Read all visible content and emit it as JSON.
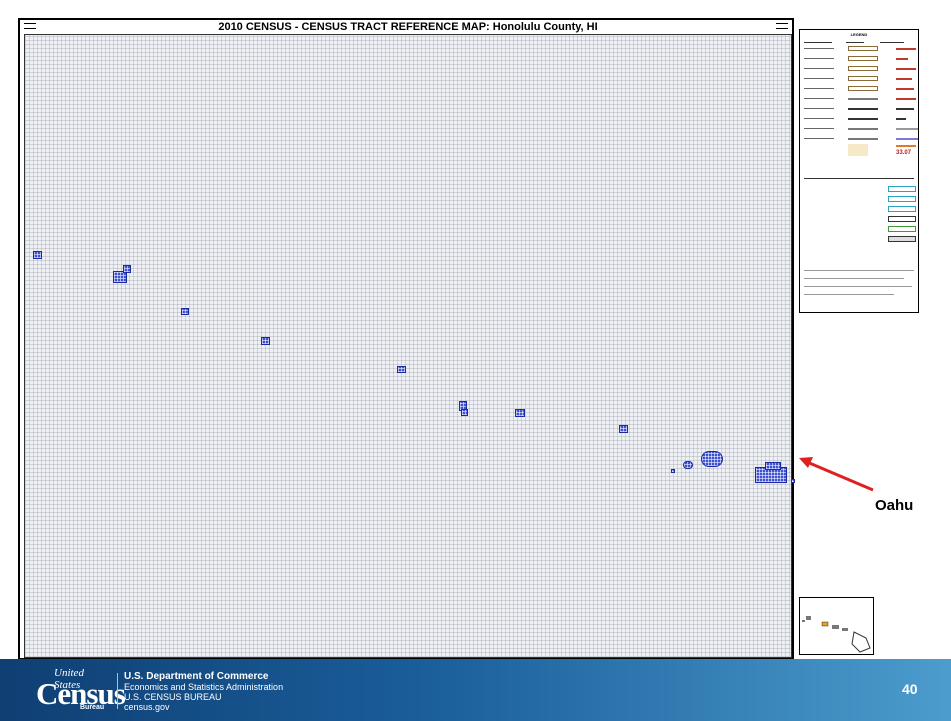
{
  "map": {
    "title": "2010 CENSUS - CENSUS TRACT REFERENCE MAP: Honolulu County, HI"
  },
  "annotation": {
    "label": "Oahu",
    "arrow_color": "#e02020"
  },
  "legend": {
    "heading": "LEGEND",
    "highlight_value": "33.07"
  },
  "footer": {
    "logo_top": "United States",
    "logo_word": "Census",
    "logo_bottom": "Bureau",
    "dept_line1": "U.S. Department of Commerce",
    "dept_line2": "Economics and Statistics Administration",
    "dept_line3": "U.S. CENSUS BUREAU",
    "dept_line4": "census.gov",
    "page_number": "40"
  },
  "colors": {
    "islands": "#3d52d5",
    "footer_bg": "#1a5e9a"
  }
}
